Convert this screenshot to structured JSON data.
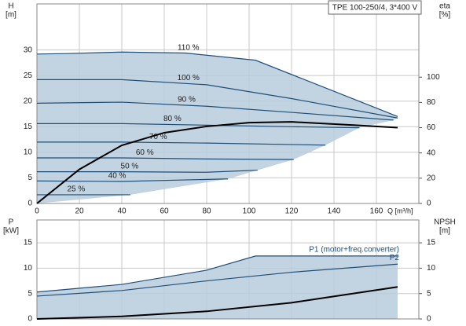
{
  "chart_data": [
    {
      "type": "line",
      "title": "TPE 100-250/4, 3*400 V",
      "y_label": "H",
      "y_unit": "[m]",
      "y2_label": "eta",
      "y2_unit": "[%]",
      "x_label": "Q [m³/h]",
      "xlim": [
        0,
        180
      ],
      "xticks": [
        0,
        20,
        40,
        60,
        80,
        100,
        120,
        140,
        160
      ],
      "ylim": [
        0,
        39
      ],
      "yticks": [
        0,
        5,
        10,
        15,
        20,
        25,
        30
      ],
      "y2lim": [
        0,
        158
      ],
      "y2ticks": [
        0,
        20,
        40,
        60,
        80,
        100
      ],
      "grid": true,
      "area_color": "#b7cbdc",
      "series": [
        {
          "name": "110 %",
          "color": "#1f4e79",
          "x": [
            0,
            14,
            40,
            70,
            103,
            170
          ],
          "values": [
            29.2,
            29.3,
            29.6,
            29.4,
            28,
            17
          ]
        },
        {
          "name": "100 %",
          "color": "#1f4e79",
          "x": [
            0,
            40,
            80,
            120,
            170
          ],
          "values": [
            24.2,
            24.2,
            23.2,
            20.5,
            16.7
          ]
        },
        {
          "name": "90 %",
          "color": "#1f4e79",
          "x": [
            0,
            40,
            80,
            120,
            168
          ],
          "values": [
            19.6,
            19.8,
            19,
            17.8,
            16.3
          ]
        },
        {
          "name": "80 %",
          "color": "#1f4e79",
          "x": [
            0,
            40,
            80,
            120,
            152
          ],
          "values": [
            15.6,
            15.6,
            15.3,
            15,
            14.8
          ]
        },
        {
          "name": "70 %",
          "color": "#1f4e79",
          "x": [
            0,
            40,
            80,
            136
          ],
          "values": [
            12,
            12,
            11.8,
            11.4
          ]
        },
        {
          "name": "60 %",
          "color": "#1f4e79",
          "x": [
            0,
            40,
            80,
            121
          ],
          "values": [
            8.9,
            8.9,
            8.7,
            8.6
          ]
        },
        {
          "name": "50 %",
          "color": "#1f4e79",
          "x": [
            0,
            40,
            80,
            104
          ],
          "values": [
            6.2,
            6.2,
            6.1,
            6.5
          ]
        },
        {
          "name": "40 %",
          "color": "#1f4e79",
          "x": [
            0,
            40,
            90
          ],
          "values": [
            4.4,
            4.3,
            4.8
          ]
        },
        {
          "name": "25 %",
          "color": "#1f4e79",
          "x": [
            0,
            20,
            44
          ],
          "values": [
            1.7,
            1.7,
            1.7
          ]
        },
        {
          "color": "#000000",
          "axis": "y2",
          "line_width": 2,
          "x": [
            0,
            20,
            40,
            60,
            80,
            100,
            120,
            150,
            170
          ],
          "values": [
            0,
            27,
            46,
            56,
            61,
            64,
            64.6,
            62,
            60
          ]
        }
      ]
    },
    {
      "type": "line",
      "y_label": "P",
      "y_unit": "[kW]",
      "y2_label": "NPSH",
      "y2_unit": "[m]",
      "xlim": [
        0,
        180
      ],
      "ylim": [
        0,
        19.5
      ],
      "yticks": [
        0,
        5,
        10,
        15
      ],
      "y2lim": [
        0,
        19.5
      ],
      "y2ticks": [
        0,
        5,
        10,
        15
      ],
      "grid": true,
      "area_color": "#b7cbdc",
      "series": [
        {
          "name": "P1 (motor+freq.converter)",
          "color": "#1f4e79",
          "x": [
            0,
            40,
            80,
            103,
            170
          ],
          "values": [
            5.3,
            6.8,
            9.6,
            12.4,
            12.4
          ]
        },
        {
          "name": "P2",
          "color": "#1f4e79",
          "x": [
            0,
            40,
            80,
            120,
            170
          ],
          "values": [
            4.5,
            5.6,
            7.5,
            9.2,
            10.8
          ]
        },
        {
          "color": "#000000",
          "axis": "y2",
          "line_width": 2,
          "x": [
            0,
            40,
            80,
            120,
            170
          ],
          "values": [
            0,
            0.5,
            1.5,
            3.2,
            6.3
          ]
        }
      ]
    }
  ]
}
